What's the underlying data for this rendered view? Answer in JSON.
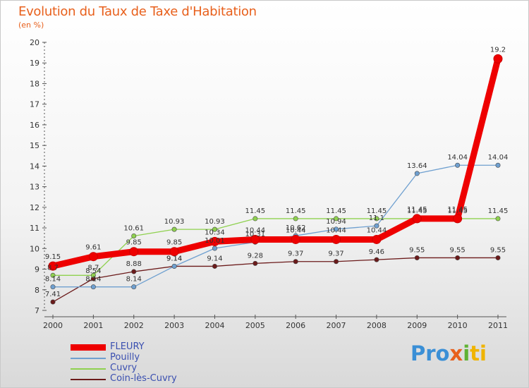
{
  "title": "Evolution du Taux de Taxe d'Habitation",
  "unit": "(en %)",
  "logo_text": "Proxiti",
  "chart_data": {
    "type": "line",
    "title": "Evolution du Taux de Taxe d'Habitation",
    "ylabel": "(en %)",
    "xlabel": "",
    "ylim": [
      7,
      20
    ],
    "yticks": [
      7,
      8,
      9,
      10,
      11,
      12,
      13,
      14,
      15,
      16,
      17,
      18,
      19,
      20
    ],
    "categories": [
      "2000",
      "2001",
      "2002",
      "2003",
      "2004",
      "2005",
      "2006",
      "2007",
      "2008",
      "2009",
      "2010",
      "2011"
    ],
    "grid": false,
    "legend_position": "bottom-left",
    "series": [
      {
        "name": "Coin-lès-Cuvry",
        "color": "#6b1a1a",
        "values": [
          7.41,
          8.54,
          8.88,
          9.14,
          9.14,
          9.28,
          9.37,
          9.37,
          9.46,
          9.55,
          9.55,
          9.55
        ],
        "labels": [
          "7.41",
          "8.54",
          "8.88",
          "9.14",
          "9.14",
          "9.28",
          "9.37",
          "9.37",
          "9.46",
          "9.55",
          "9.55",
          "9.55"
        ]
      },
      {
        "name": "Cuvry",
        "color": "#8fd14f",
        "values": [
          8.7,
          8.7,
          10.61,
          10.93,
          10.93,
          11.45,
          11.45,
          11.45,
          11.45,
          11.45,
          11.45,
          11.45
        ],
        "labels": [
          "8.7",
          "8.7",
          "10.61",
          "10.93",
          "10.93",
          "11.45",
          "11.45",
          "11.45",
          "11.45",
          "11.45",
          "11.45",
          "11.45"
        ]
      },
      {
        "name": "Pouilly",
        "color": "#6fa0d0",
        "values": [
          8.14,
          8.14,
          8.14,
          9.14,
          10.01,
          10.31,
          10.62,
          10.94,
          11.1,
          13.64,
          14.04,
          14.04
        ],
        "labels": [
          "8.14",
          "8.14",
          "8.14",
          "9.14",
          "10.01",
          "10.31",
          "10.62",
          "10.94",
          "11.1",
          "13.64",
          "14.04",
          "14.04"
        ]
      },
      {
        "name": "FLEURY",
        "color": "#ee0000",
        "values": [
          9.15,
          9.61,
          9.85,
          9.85,
          10.34,
          10.44,
          10.44,
          10.44,
          10.44,
          11.45,
          11.45,
          19.2
        ],
        "labels": [
          "9.15",
          "9.61",
          "9.85",
          "9.85",
          "10.34",
          "10.44",
          "10.44",
          "10.44",
          "10.44",
          "11.45",
          "11.45",
          "19.2"
        ]
      }
    ]
  },
  "legend": [
    {
      "name": "FLEURY",
      "color": "#ee0000",
      "thickness": 8
    },
    {
      "name": "Pouilly",
      "color": "#6fa0d0",
      "thickness": 2
    },
    {
      "name": "Cuvry",
      "color": "#8fd14f",
      "thickness": 2
    },
    {
      "name": "Coin-lès-Cuvry",
      "color": "#6b1a1a",
      "thickness": 2
    }
  ]
}
